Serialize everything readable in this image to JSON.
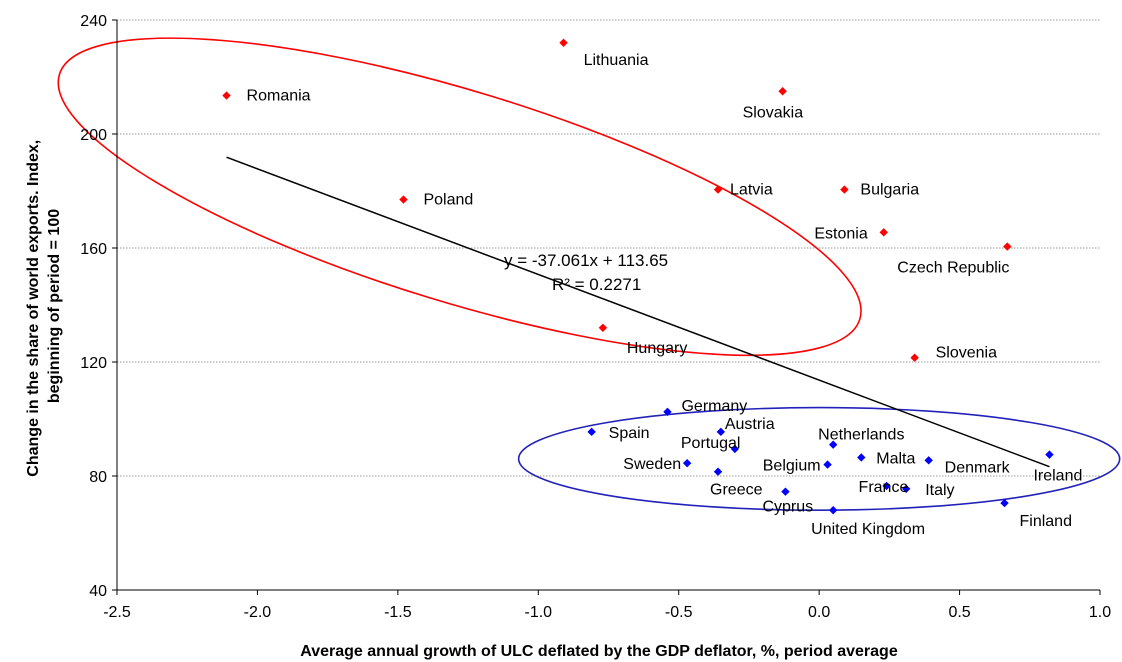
{
  "chart_data": {
    "type": "scatter",
    "title": "",
    "xlabel": "Average annual growth of ULC deflated by the GDP deflator, %, period average",
    "ylabel": "Change in the share of world exports. Index, beginning of period = 100",
    "ylabel_lines": [
      "Change in the share of world exports. Index,",
      "beginning of period = 100"
    ],
    "xlim": [
      -2.5,
      1.0
    ],
    "ylim": [
      40,
      240
    ],
    "x_ticks": [
      -2.5,
      -2.0,
      -1.5,
      -1.0,
      -0.5,
      0.0,
      0.5,
      1.0
    ],
    "x_tick_labels": [
      "-2.5",
      "-2.0",
      "-1.5",
      "-1.0",
      "-0.5",
      "0.0",
      "0.5",
      "1.0"
    ],
    "y_ticks": [
      40,
      80,
      120,
      160,
      200,
      240
    ],
    "y_tick_labels": [
      "40",
      "80",
      "120",
      "160",
      "200",
      "240"
    ],
    "grid": "horizontal",
    "legend": "none",
    "series": [
      {
        "color": "#ff0000",
        "points": [
          {
            "label": "Romania",
            "x": -2.11,
            "y": 213.5
          },
          {
            "label": "Lithuania",
            "x": -0.91,
            "y": 232
          },
          {
            "label": "Slovakia",
            "x": -0.13,
            "y": 215
          },
          {
            "label": "Poland",
            "x": -1.48,
            "y": 177
          },
          {
            "label": "Latvia",
            "x": -0.36,
            "y": 180.5
          },
          {
            "label": "Bulgaria",
            "x": 0.09,
            "y": 180.5
          },
          {
            "label": "Estonia",
            "x": 0.23,
            "y": 165.5
          },
          {
            "label": "Czech Republic",
            "x": 0.67,
            "y": 160.5
          },
          {
            "label": "Hungary",
            "x": -0.77,
            "y": 132
          },
          {
            "label": "Slovenia",
            "x": 0.34,
            "y": 121.5
          }
        ]
      },
      {
        "color": "#0000ff",
        "points": [
          {
            "label": "Germany",
            "x": -0.54,
            "y": 102.5
          },
          {
            "label": "Spain",
            "x": -0.81,
            "y": 95.5
          },
          {
            "label": "Austria",
            "x": -0.35,
            "y": 95.5
          },
          {
            "label": "Portugal",
            "x": -0.3,
            "y": 89.5
          },
          {
            "label": "Netherlands",
            "x": 0.05,
            "y": 91
          },
          {
            "label": "Sweden",
            "x": -0.47,
            "y": 84.5
          },
          {
            "label": "Greece",
            "x": -0.36,
            "y": 81.5
          },
          {
            "label": "Belgium",
            "x": 0.03,
            "y": 84
          },
          {
            "label": "Malta",
            "x": 0.15,
            "y": 86.5
          },
          {
            "label": "Denmark",
            "x": 0.39,
            "y": 85.5
          },
          {
            "label": "Ireland",
            "x": 0.82,
            "y": 87.5
          },
          {
            "label": "France",
            "x": 0.24,
            "y": 76.5
          },
          {
            "label": "Italy",
            "x": 0.31,
            "y": 75.5
          },
          {
            "label": "Cyprus",
            "x": -0.12,
            "y": 74.5
          },
          {
            "label": "United Kingdom",
            "x": 0.05,
            "y": 68
          },
          {
            "label": "Finland",
            "x": 0.66,
            "y": 70.5
          }
        ]
      }
    ],
    "trendline": {
      "slope": -37.061,
      "intercept": 113.65,
      "x_range": [
        -2.11,
        0.82
      ],
      "color": "#000000",
      "equation_label": "y = -37.061x + 113.65",
      "r2_label": "R² = 0.2271"
    },
    "ellipses": [
      {
        "color": "#ff0000",
        "cx": -1.28,
        "cy": 178,
        "rx": 1.49,
        "ry": 37,
        "rotation_deg": 17
      },
      {
        "color": "#2222bb",
        "cx": 0.0,
        "cy": 86,
        "rx": 1.07,
        "ry": 18,
        "rotation_deg": 0
      }
    ]
  }
}
